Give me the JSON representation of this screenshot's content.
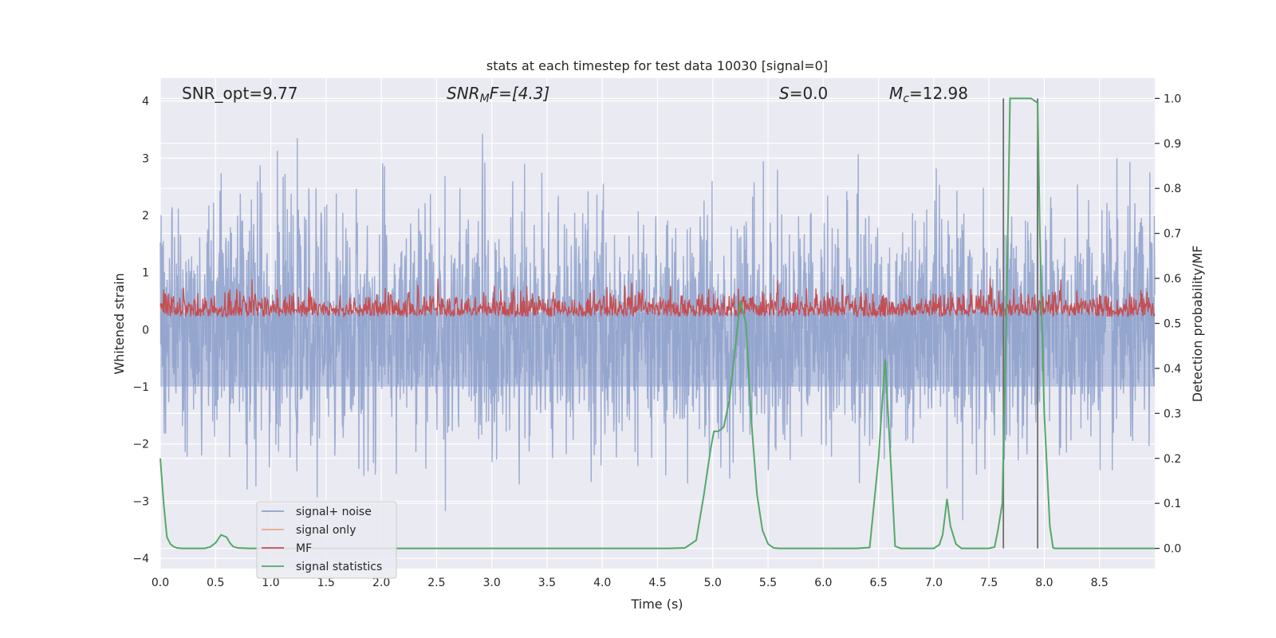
{
  "chart_data": {
    "type": "line",
    "title": "stats at each timestep for test data 10030 [signal=0]",
    "xlabel": "Time (s)",
    "ylabel_left": "Whitened strain",
    "ylabel_right": "Detection probability/MF",
    "xlim": [
      0.0,
      9.0
    ],
    "ylim_left": [
      -4.18,
      4.4
    ],
    "ylim_right": [
      -0.045,
      1.045
    ],
    "grid": true,
    "xticks": [
      "0.0",
      "0.5",
      "1.0",
      "1.5",
      "2.0",
      "2.5",
      "3.0",
      "3.5",
      "4.0",
      "4.5",
      "5.0",
      "5.5",
      "6.0",
      "6.5",
      "7.0",
      "7.5",
      "8.0",
      "8.5"
    ],
    "xtick_values": [
      0.0,
      0.5,
      1.0,
      1.5,
      2.0,
      2.5,
      3.0,
      3.5,
      4.0,
      4.5,
      5.0,
      5.5,
      6.0,
      6.5,
      7.0,
      7.5,
      8.0,
      8.5
    ],
    "yticks_left": [
      "4",
      "3",
      "2",
      "1",
      "0",
      "−1",
      "−2",
      "−3",
      "−4"
    ],
    "ytick_left_values": [
      4,
      3,
      2,
      1,
      0,
      -1,
      -2,
      -3,
      -4
    ],
    "yticks_right": [
      "1.0",
      "0.9",
      "0.8",
      "0.7",
      "0.6",
      "0.5",
      "0.4",
      "0.3",
      "0.2",
      "0.1",
      "0.0"
    ],
    "ytick_right_values": [
      1.0,
      0.9,
      0.8,
      0.7,
      0.6,
      0.5,
      0.4,
      0.3,
      0.2,
      0.1,
      0.0
    ],
    "annotations": {
      "snr_opt": "SNR_opt=9.77",
      "snr_mf_main": "SNR",
      "snr_mf_sub": "M",
      "snr_mf_rest": "F=[4.3]",
      "s_var": "S",
      "s_rest": "=0.0",
      "mc_var": "M",
      "mc_sub": "c",
      "mc_rest": "=12.98"
    },
    "legend": [
      "signal+ noise",
      "signal only",
      "MF",
      "signal statistics"
    ],
    "colors": {
      "signal_noise": "#8da0cb",
      "signal_only": "#e8a98c",
      "mf": "#c44e52",
      "signal_statistics": "#55a868",
      "vlines": "#6e6e6e",
      "background": "#eaeaf2",
      "grid": "#ffffff"
    },
    "series": [
      {
        "name": "signal statistics",
        "axis": "right",
        "x": [
          0.0,
          0.03,
          0.06,
          0.09,
          0.12,
          0.15,
          0.2,
          0.3,
          0.4,
          0.45,
          0.5,
          0.55,
          0.6,
          0.63,
          0.66,
          0.7,
          0.8,
          1.0,
          2.0,
          3.0,
          4.0,
          4.6,
          4.75,
          4.85,
          4.92,
          4.98,
          5.01,
          5.05,
          5.1,
          5.15,
          5.2,
          5.25,
          5.3,
          5.35,
          5.4,
          5.45,
          5.5,
          5.55,
          5.6,
          5.7,
          5.8,
          6.0,
          6.3,
          6.42,
          6.5,
          6.56,
          6.62,
          6.65,
          6.7,
          6.8,
          6.9,
          7.0,
          7.05,
          7.08,
          7.12,
          7.15,
          7.2,
          7.25,
          7.3,
          7.35,
          7.5,
          7.55,
          7.58,
          7.62,
          7.66,
          7.69,
          7.72,
          7.8,
          7.88,
          7.94,
          7.96,
          8.0,
          8.05,
          8.08,
          8.1,
          8.2,
          8.5,
          9.0
        ],
        "y": [
          0.2,
          0.1,
          0.025,
          0.01,
          0.004,
          0.001,
          0.0,
          0.0,
          0.0,
          0.003,
          0.012,
          0.03,
          0.025,
          0.012,
          0.004,
          0.001,
          0.0,
          0.0,
          0.0,
          0.0,
          0.0,
          0.0,
          0.001,
          0.018,
          0.12,
          0.22,
          0.26,
          0.26,
          0.27,
          0.33,
          0.44,
          0.55,
          0.5,
          0.28,
          0.12,
          0.04,
          0.01,
          0.001,
          0.0,
          0.0,
          0.0,
          0.0,
          0.0,
          0.002,
          0.2,
          0.42,
          0.15,
          0.005,
          0.0,
          0.0,
          0.0,
          0.0,
          0.008,
          0.03,
          0.11,
          0.05,
          0.01,
          0.0,
          0.0,
          0.0,
          0.0,
          0.003,
          0.04,
          0.1,
          0.55,
          1.0,
          1.0,
          1.0,
          1.0,
          0.99,
          0.7,
          0.3,
          0.05,
          0.001,
          0.0,
          0.0,
          0.0,
          0.0
        ]
      },
      {
        "name": "signal+ noise",
        "axis": "left",
        "description_range": [
          -3.5,
          3.6
        ]
      },
      {
        "name": "MF",
        "axis": "right",
        "description_range": [
          0.5,
          0.6
        ]
      }
    ],
    "vlines_x": [
      7.63,
      7.94
    ],
    "vlines_yrange": [
      0.0,
      1.0
    ]
  }
}
